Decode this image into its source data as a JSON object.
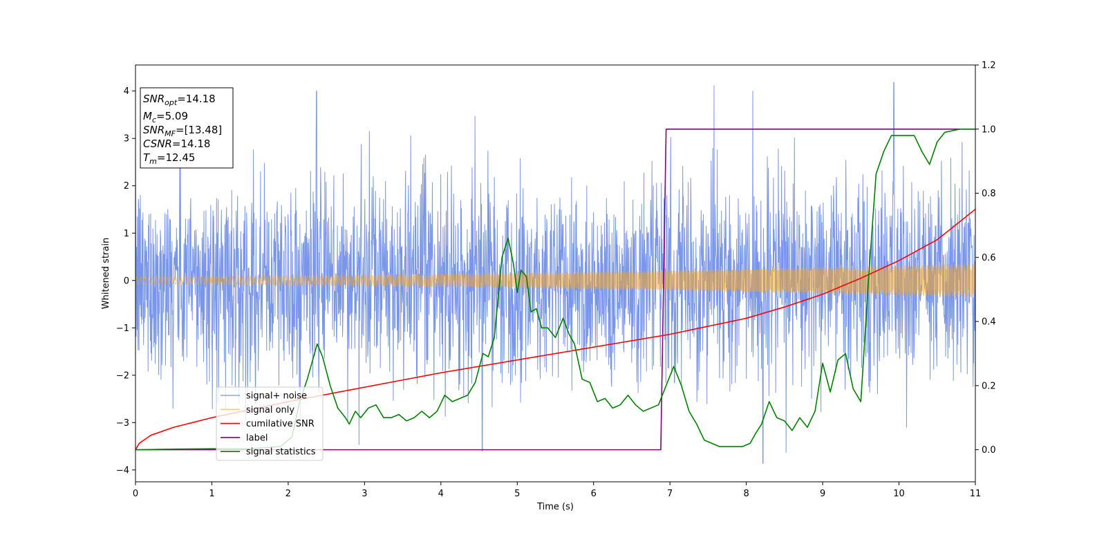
{
  "chart_data": {
    "type": "line",
    "xlabel": "Time (s)",
    "ylabel": "Whitened strain",
    "xlim": [
      0,
      11
    ],
    "ylim_left": [
      -4.25,
      4.55
    ],
    "ylim_right": [
      -0.1,
      1.2
    ],
    "x_ticks": [
      "0",
      "1",
      "2",
      "3",
      "4",
      "5",
      "6",
      "7",
      "8",
      "9",
      "10",
      "11"
    ],
    "y_left_ticks": [
      "−4",
      "−3",
      "−2",
      "−1",
      "0",
      "1",
      "2",
      "3",
      "4"
    ],
    "y_right_ticks": [
      "0.0",
      "0.2",
      "0.4",
      "0.6",
      "0.8",
      "1.0",
      "1.2"
    ],
    "legend_position": "lower-left",
    "grid": false,
    "info_box": {
      "snr_opt": {
        "sym": "SNR",
        "sub": "opt",
        "val": "=14.18"
      },
      "mc": {
        "sym": "M",
        "sub": "c",
        "val": "=5.09"
      },
      "snr_mf": {
        "sym": "SNR",
        "sub": "MF",
        "val": "=[13.48]"
      },
      "csnr": {
        "sym": "CSNR",
        "sub": "",
        "val": "=14.18"
      },
      "tm": {
        "sym": "T",
        "sub": "m",
        "val": "=12.45"
      }
    },
    "series": [
      {
        "name": "signal+ noise",
        "axis": "left",
        "color": "#4169e1",
        "kind": "noise",
        "envelope_sigma": 1.0,
        "description_values": {
          "typical_range": [
            -2.5,
            2.5
          ],
          "max_peak": 4.18,
          "max_peak_x": 9.93,
          "min_peak": -3.86,
          "min_peak_x": 8.22
        }
      },
      {
        "name": "signal only",
        "axis": "left",
        "color": "#f5a623",
        "kind": "chirp",
        "amplitude_start": 0.08,
        "amplitude_end": 0.36
      },
      {
        "name": "cumilative SNR",
        "axis": "right",
        "color": "#ff0000",
        "x": [
          0,
          0.05,
          0.2,
          0.5,
          1,
          2,
          3,
          4,
          5,
          6,
          7,
          8,
          8.5,
          9,
          9.5,
          10,
          10.5,
          11
        ],
        "y": [
          0,
          0.02,
          0.045,
          0.07,
          0.1,
          0.15,
          0.195,
          0.24,
          0.28,
          0.32,
          0.36,
          0.41,
          0.445,
          0.485,
          0.535,
          0.59,
          0.655,
          0.75
        ]
      },
      {
        "name": "label",
        "axis": "right",
        "color": "#800080",
        "x": [
          0,
          6.88,
          6.95,
          11
        ],
        "y": [
          0,
          0,
          1,
          1
        ]
      },
      {
        "name": "signal statistics",
        "axis": "right",
        "color": "#008000",
        "x": [
          0,
          0.5,
          1,
          1.5,
          1.9,
          2.05,
          2.15,
          2.25,
          2.38,
          2.45,
          2.55,
          2.65,
          2.75,
          2.8,
          2.88,
          2.95,
          3.05,
          3.15,
          3.25,
          3.35,
          3.45,
          3.55,
          3.65,
          3.75,
          3.85,
          3.95,
          4.05,
          4.15,
          4.25,
          4.35,
          4.45,
          4.55,
          4.62,
          4.7,
          4.8,
          4.88,
          4.95,
          5.0,
          5.05,
          5.12,
          5.18,
          5.25,
          5.32,
          5.4,
          5.5,
          5.6,
          5.68,
          5.75,
          5.85,
          5.95,
          6.05,
          6.15,
          6.25,
          6.35,
          6.45,
          6.55,
          6.65,
          6.75,
          6.85,
          6.95,
          7.05,
          7.15,
          7.25,
          7.35,
          7.45,
          7.55,
          7.65,
          7.75,
          7.85,
          7.95,
          8.05,
          8.12,
          8.2,
          8.3,
          8.4,
          8.5,
          8.6,
          8.7,
          8.8,
          8.9,
          9.0,
          9.1,
          9.2,
          9.3,
          9.4,
          9.5,
          9.6,
          9.7,
          9.8,
          9.9,
          10.0,
          10.1,
          10.2,
          10.3,
          10.4,
          10.5,
          10.6,
          10.8,
          11
        ],
        "y": [
          0.0,
          0.002,
          0.003,
          0.003,
          0.01,
          0.04,
          0.15,
          0.22,
          0.33,
          0.29,
          0.2,
          0.13,
          0.1,
          0.08,
          0.12,
          0.1,
          0.13,
          0.14,
          0.1,
          0.1,
          0.11,
          0.09,
          0.1,
          0.12,
          0.1,
          0.12,
          0.17,
          0.15,
          0.16,
          0.17,
          0.21,
          0.3,
          0.29,
          0.35,
          0.6,
          0.66,
          0.58,
          0.49,
          0.56,
          0.54,
          0.43,
          0.44,
          0.38,
          0.38,
          0.35,
          0.41,
          0.36,
          0.33,
          0.22,
          0.21,
          0.15,
          0.16,
          0.13,
          0.14,
          0.17,
          0.14,
          0.12,
          0.13,
          0.14,
          0.2,
          0.26,
          0.2,
          0.12,
          0.08,
          0.03,
          0.02,
          0.01,
          0.01,
          0.01,
          0.01,
          0.02,
          0.05,
          0.08,
          0.15,
          0.1,
          0.09,
          0.06,
          0.1,
          0.07,
          0.12,
          0.27,
          0.18,
          0.28,
          0.3,
          0.19,
          0.15,
          0.53,
          0.86,
          0.93,
          0.98,
          0.98,
          0.98,
          0.98,
          0.93,
          0.89,
          0.96,
          0.99,
          1.0,
          1.0
        ]
      }
    ]
  }
}
